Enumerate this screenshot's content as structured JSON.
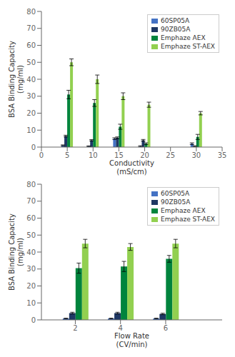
{
  "chart_data": [
    {
      "type": "bar",
      "x": [
        5,
        10,
        15,
        20,
        30
      ],
      "xlabel": "Conductivity\n(mS/cm)",
      "ylabel": "BSA Binding Capacity\n(mg/ml)",
      "xlim": [
        0,
        35
      ],
      "ylim": [
        0,
        80
      ],
      "xticks": [
        0,
        5,
        10,
        15,
        20,
        25,
        30,
        35
      ],
      "yticks": [
        0,
        10,
        20,
        30,
        40,
        50,
        60,
        70,
        80
      ],
      "grid": false,
      "legend": "upper right",
      "series": [
        {
          "name": "60SP05A",
          "color": "#4472c4",
          "values": [
            1.0,
            0.5,
            5.0,
            0.5,
            2.0
          ],
          "errors": [
            0.3,
            0.2,
            0.5,
            0.3,
            0.5
          ]
        },
        {
          "name": "90ZB05A",
          "color": "#1f3864",
          "values": [
            6.5,
            4.0,
            5.5,
            4.0,
            0.5
          ],
          "errors": [
            0.5,
            0.4,
            0.5,
            0.5,
            0.3
          ]
        },
        {
          "name": "Emphaze AEX",
          "color": "#00843d",
          "values": [
            31.0,
            26.0,
            12.0,
            2.0,
            6.0
          ],
          "errors": [
            2.5,
            2.0,
            1.5,
            0.5,
            1.5
          ]
        },
        {
          "name": "Emphaze ST-AEX",
          "color": "#92d050",
          "values": [
            50.0,
            40.0,
            30.0,
            25.0,
            20.0
          ],
          "errors": [
            2.0,
            2.5,
            2.0,
            1.5,
            1.0
          ]
        }
      ]
    },
    {
      "type": "bar",
      "x": [
        2,
        4,
        6
      ],
      "xlabel": "Flow Rate\n(CV/min)",
      "ylabel": "BSA Binding Capacity\n(mg/ml)",
      "xlim": [
        0.5,
        8.5
      ],
      "ylim": [
        0,
        80
      ],
      "xticks": [
        2,
        4,
        6
      ],
      "yticks": [
        0,
        10,
        20,
        30,
        40,
        50,
        60,
        70,
        80
      ],
      "grid": false,
      "legend": "upper right",
      "series": [
        {
          "name": "60SP05A",
          "color": "#4472c4",
          "values": [
            0.8,
            0.8,
            0.8
          ],
          "errors": [
            0.2,
            0.2,
            0.2
          ]
        },
        {
          "name": "90ZB05A",
          "color": "#1f3864",
          "values": [
            4.0,
            4.0,
            3.5
          ],
          "errors": [
            0.5,
            0.5,
            0.4
          ]
        },
        {
          "name": "Emphaze AEX",
          "color": "#00843d",
          "values": [
            30.5,
            31.5,
            36.0
          ],
          "errors": [
            3.0,
            3.0,
            2.0
          ]
        },
        {
          "name": "Emphaze ST-AEX",
          "color": "#92d050",
          "values": [
            45.0,
            43.0,
            45.0
          ],
          "errors": [
            2.5,
            2.0,
            2.5
          ]
        }
      ]
    }
  ]
}
